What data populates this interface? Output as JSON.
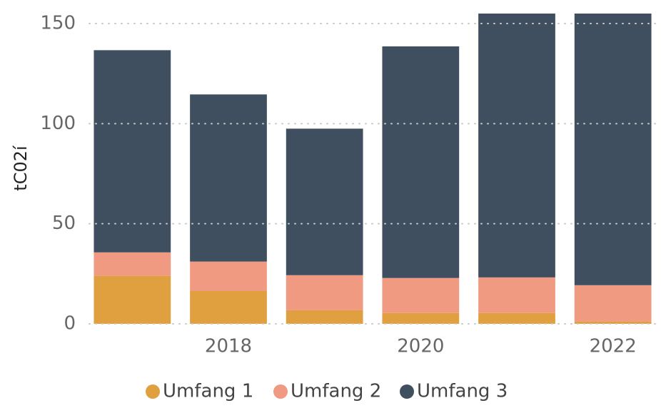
{
  "chart_data": {
    "type": "stacked_bar",
    "y_label": "tC02í",
    "categories": [
      null,
      "2018",
      null,
      "2020",
      null,
      "2022"
    ],
    "series": [
      {
        "name": "Umfang 1",
        "color": "#e0a040",
        "values": [
          24,
          16.4,
          6.8,
          5.4,
          5.4,
          1.1
        ]
      },
      {
        "name": "Umfang 2",
        "color": "#f09a82",
        "values": [
          11.7,
          14.7,
          17.5,
          17.5,
          17.8,
          18.2
        ]
      },
      {
        "name": "Umfang 3",
        "color": "#3f4f60",
        "values": [
          101,
          83.5,
          73.2,
          115.7,
          137,
          140.7
        ]
      }
    ],
    "ylim": [
      0,
      155
    ],
    "yticks": [
      0,
      50,
      100,
      150
    ],
    "grid": true,
    "legend": "bottom"
  }
}
